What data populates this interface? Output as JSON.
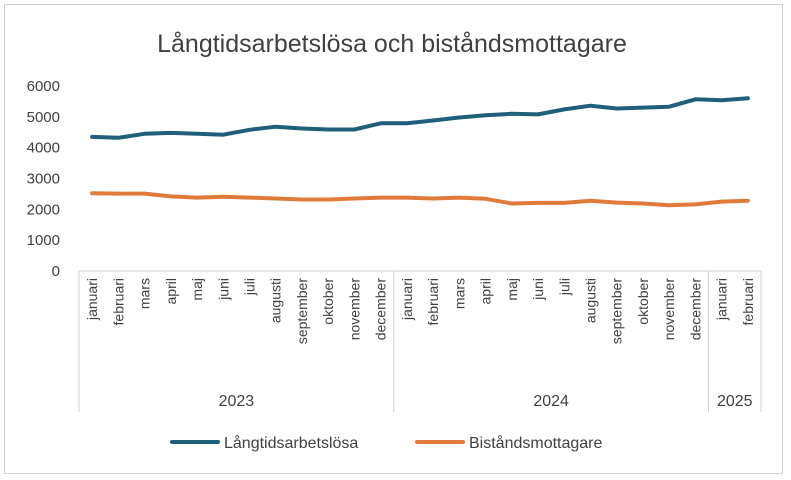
{
  "chart_data": {
    "type": "line",
    "title": "Långtidsarbetslösa och biståndsmottagare",
    "categories": [
      "januari",
      "februari",
      "mars",
      "april",
      "maj",
      "juni",
      "juli",
      "augusti",
      "september",
      "oktober",
      "november",
      "december",
      "januari",
      "februari",
      "mars",
      "april",
      "maj",
      "juni",
      "juli",
      "augusti",
      "september",
      "oktober",
      "november",
      "december",
      "januari",
      "februari"
    ],
    "year_groups": [
      {
        "label": "2023",
        "count": 12
      },
      {
        "label": "2024",
        "count": 12
      },
      {
        "label": "2025",
        "count": 2
      }
    ],
    "ylim": [
      0,
      6000
    ],
    "yticks": [
      "0",
      "1000",
      "2000",
      "3000",
      "4000",
      "5000",
      "6000"
    ],
    "grid": false,
    "legend": "bottom",
    "series": [
      {
        "name": "Långtidsarbetslösa",
        "color": "#1f5f7a",
        "values": [
          4350,
          4320,
          4450,
          4480,
          4450,
          4420,
          4580,
          4680,
          4620,
          4590,
          4590,
          4790,
          4790,
          4880,
          4980,
          5050,
          5100,
          5080,
          5240,
          5360,
          5270,
          5300,
          5330,
          5570,
          5540,
          5600
        ]
      },
      {
        "name": "Biståndsmottagare",
        "color": "#e07b39",
        "values": [
          2520,
          2510,
          2510,
          2420,
          2380,
          2410,
          2380,
          2350,
          2320,
          2320,
          2350,
          2380,
          2380,
          2350,
          2380,
          2340,
          2190,
          2210,
          2210,
          2280,
          2220,
          2190,
          2130,
          2160,
          2250,
          2280
        ]
      }
    ]
  }
}
